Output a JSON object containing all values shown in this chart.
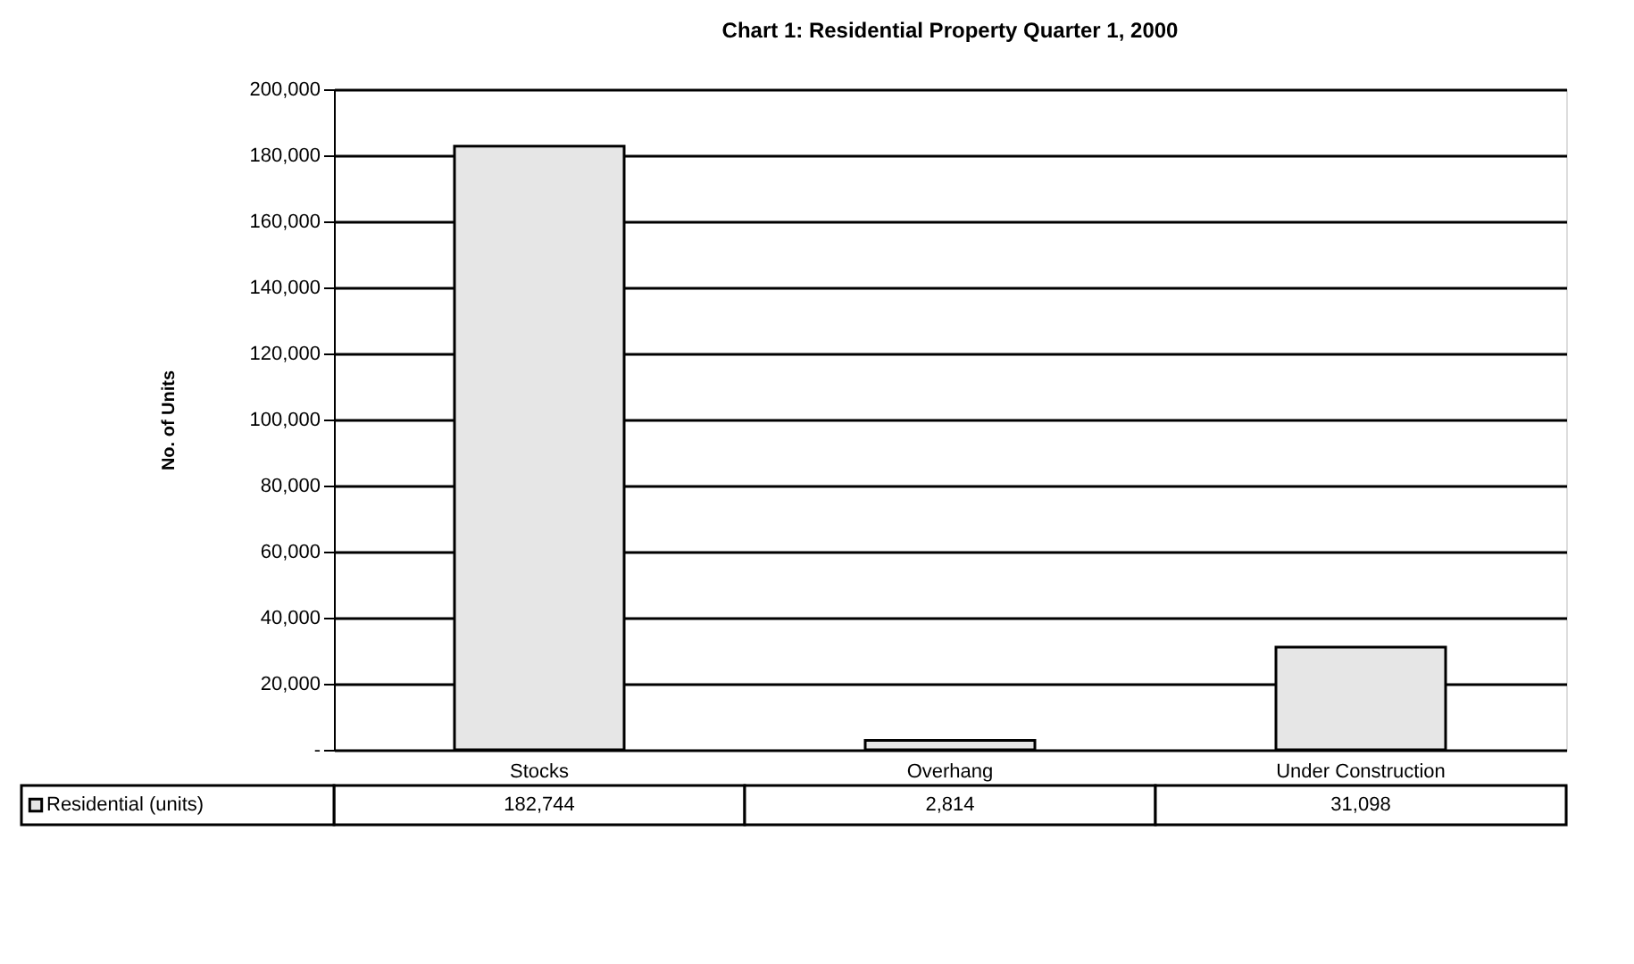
{
  "chart_data": {
    "type": "bar",
    "title": "Chart 1: Residential Property Quarter 1, 2000",
    "ylabel": "No. of Units",
    "categories": [
      "Stocks",
      "Overhang",
      "Under Construction"
    ],
    "series": [
      {
        "name": "Residential (units)",
        "color": "#e6e6e6",
        "values": [
          182744,
          2814,
          31098
        ]
      }
    ],
    "value_labels": [
      "182,744",
      "2,814",
      "31,098"
    ],
    "ylim": [
      0,
      200000
    ],
    "yticks": [
      {
        "value": 0,
        "label": "-"
      },
      {
        "value": 20000,
        "label": "20,000"
      },
      {
        "value": 40000,
        "label": "40,000"
      },
      {
        "value": 60000,
        "label": "60,000"
      },
      {
        "value": 80000,
        "label": "80,000"
      },
      {
        "value": 100000,
        "label": "100,000"
      },
      {
        "value": 120000,
        "label": "120,000"
      },
      {
        "value": 140000,
        "label": "140,000"
      },
      {
        "value": 160000,
        "label": "160,000"
      },
      {
        "value": 180000,
        "label": "180,000"
      },
      {
        "value": 200000,
        "label": "200,000"
      }
    ],
    "grid": "y",
    "legend": "bottom left"
  }
}
